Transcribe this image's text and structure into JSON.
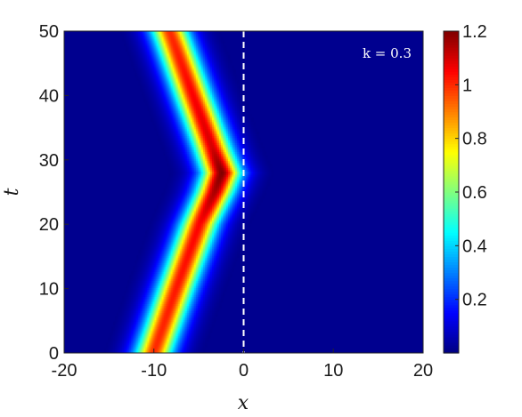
{
  "chart_data": {
    "type": "heatmap",
    "title": "",
    "xlabel": "x",
    "ylabel": "t",
    "xlim": [
      -20,
      20
    ],
    "ylim": [
      0,
      50
    ],
    "xticks": [
      "-20",
      "-10",
      "0",
      "10",
      "20"
    ],
    "yticks": [
      "0",
      "10",
      "20",
      "30",
      "40",
      "50"
    ],
    "colorbar": {
      "min": 0,
      "max": 1.2,
      "ticks": [
        "0.2",
        "0.4",
        "0.6",
        "0.8",
        "1",
        "1.2"
      ],
      "colormap": "jet"
    },
    "annotation": "k = 0.3",
    "reference_line": {
      "x": 0,
      "style": "dashed",
      "color": "#ffffff"
    },
    "soliton_path": [
      {
        "t": 0,
        "x": -10.0
      },
      {
        "t": 10,
        "x": -7.5
      },
      {
        "t": 20,
        "x": -4.9
      },
      {
        "t": 25,
        "x": -3.2
      },
      {
        "t": 28,
        "x": -2.4
      },
      {
        "t": 31,
        "x": -3.2
      },
      {
        "t": 40,
        "x": -5.6
      },
      {
        "t": 50,
        "x": -8.2
      }
    ],
    "peak_amplitude": [
      {
        "t": 0,
        "value": 1.0
      },
      {
        "t": 20,
        "value": 1.05
      },
      {
        "t": 25,
        "value": 1.15
      },
      {
        "t": 28,
        "value": 1.2
      },
      {
        "t": 32,
        "value": 1.1
      },
      {
        "t": 50,
        "value": 1.0
      }
    ],
    "background_value": 0.0
  }
}
